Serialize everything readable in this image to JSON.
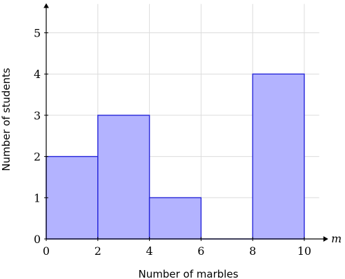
{
  "chart_data": {
    "type": "bar",
    "bins": [
      {
        "x0": 0,
        "x1": 2,
        "count": 2
      },
      {
        "x0": 2,
        "x1": 4,
        "count": 3
      },
      {
        "x0": 4,
        "x1": 6,
        "count": 1
      },
      {
        "x0": 6,
        "x1": 8,
        "count": 0
      },
      {
        "x0": 8,
        "x1": 10,
        "count": 4
      }
    ],
    "xlabel": "Number of marbles",
    "ylabel": "Number of students",
    "x_axis_var": "m",
    "xlim": [
      0,
      10.9
    ],
    "ylim": [
      0,
      5.7
    ],
    "xticks": [
      0,
      2,
      4,
      6,
      8,
      10
    ],
    "yticks": [
      0,
      1,
      2,
      3,
      4,
      5
    ],
    "grid": true,
    "colors": {
      "fill": "#b3b3ff",
      "edge": "#2626d9",
      "grid": "#dcdcdc"
    }
  }
}
